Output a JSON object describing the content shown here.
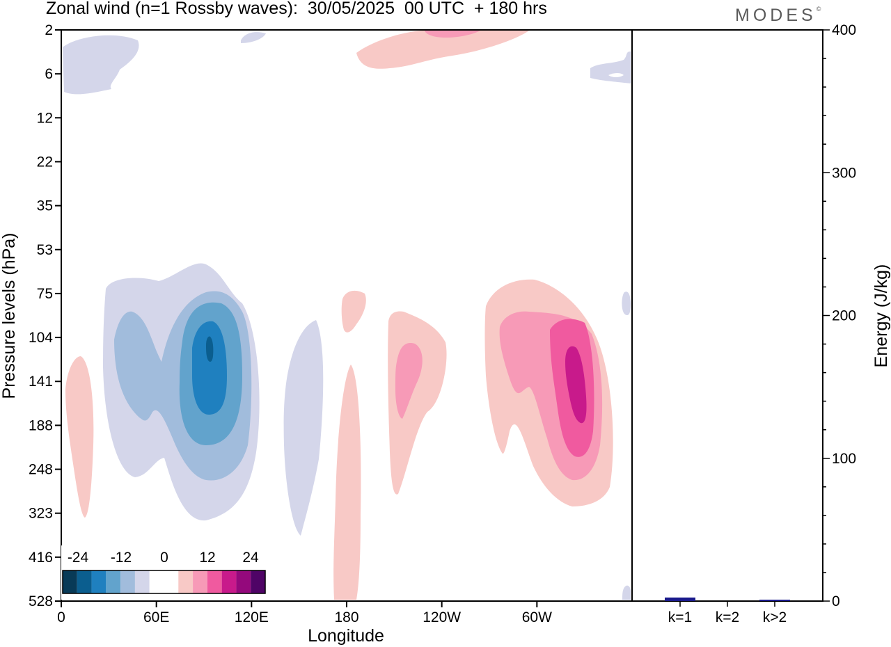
{
  "header": {
    "title": "Zonal wind (n=1 Rossby waves):  30/05/2025  00 UTC  + 180 hrs",
    "brand": "MODES",
    "brand_mark": "©"
  },
  "chart_data": [
    {
      "type": "heatmap",
      "title": "Zonal wind (n=1 Rossby waves):  30/05/2025  00 UTC  + 180 hrs",
      "xlabel": "Longitude",
      "ylabel": "Pressure levels (hPa)",
      "x_ticks": [
        "0",
        "60E",
        "120E",
        "180",
        "120W",
        "60W"
      ],
      "x_tick_degrees": [
        0,
        60,
        120,
        180,
        240,
        300
      ],
      "xlim": [
        0,
        360
      ],
      "y_ticks": [
        "2",
        "6",
        "12",
        "22",
        "35",
        "53",
        "75",
        "104",
        "141",
        "188",
        "248",
        "323",
        "416",
        "528"
      ],
      "colorbar": {
        "labels": [
          "-24",
          "-12",
          "0",
          "12",
          "24"
        ],
        "colors": [
          "#083a57",
          "#0b5e8f",
          "#1f80bf",
          "#62a3cc",
          "#a1bcdc",
          "#d4d6ea",
          "#ffffff",
          "#ffffff",
          "#f8c9c6",
          "#f79ab7",
          "#f05a9f",
          "#c81a8b",
          "#94097c",
          "#4f0466"
        ]
      },
      "features": [
        {
          "sign": "negative",
          "peak_lon": 93,
          "peak_level": "141",
          "peak_value": -22
        },
        {
          "sign": "positive",
          "peak_lon": 325,
          "peak_level": "141",
          "peak_value": 16
        },
        {
          "sign": "positive",
          "peak_lon": 212,
          "peak_level": "141",
          "peak_value": 8
        },
        {
          "sign": "positive",
          "peak_lon": 182,
          "peak_level": "416",
          "peak_value": 4
        },
        {
          "sign": "negative",
          "peak_lon": 152,
          "peak_level": "188",
          "peak_value": -4
        },
        {
          "sign": "positive",
          "peak_lon": 10,
          "peak_level": "188",
          "peak_value": 4
        },
        {
          "sign": "positive",
          "peak_lon": 240,
          "peak_level": "2",
          "peak_value": 8
        },
        {
          "sign": "negative",
          "peak_lon": 20,
          "peak_level": "6",
          "peak_value": -4
        }
      ]
    },
    {
      "type": "bar",
      "ylabel": "Energy (J/kg)",
      "ylim": [
        0,
        400
      ],
      "y_ticks": [
        "0",
        "100",
        "200",
        "300",
        "400"
      ],
      "categories": [
        "k=1",
        "k=2",
        "k>2"
      ],
      "values": [
        2.5,
        0,
        1
      ],
      "bar_color": "#1a1a8c"
    }
  ]
}
